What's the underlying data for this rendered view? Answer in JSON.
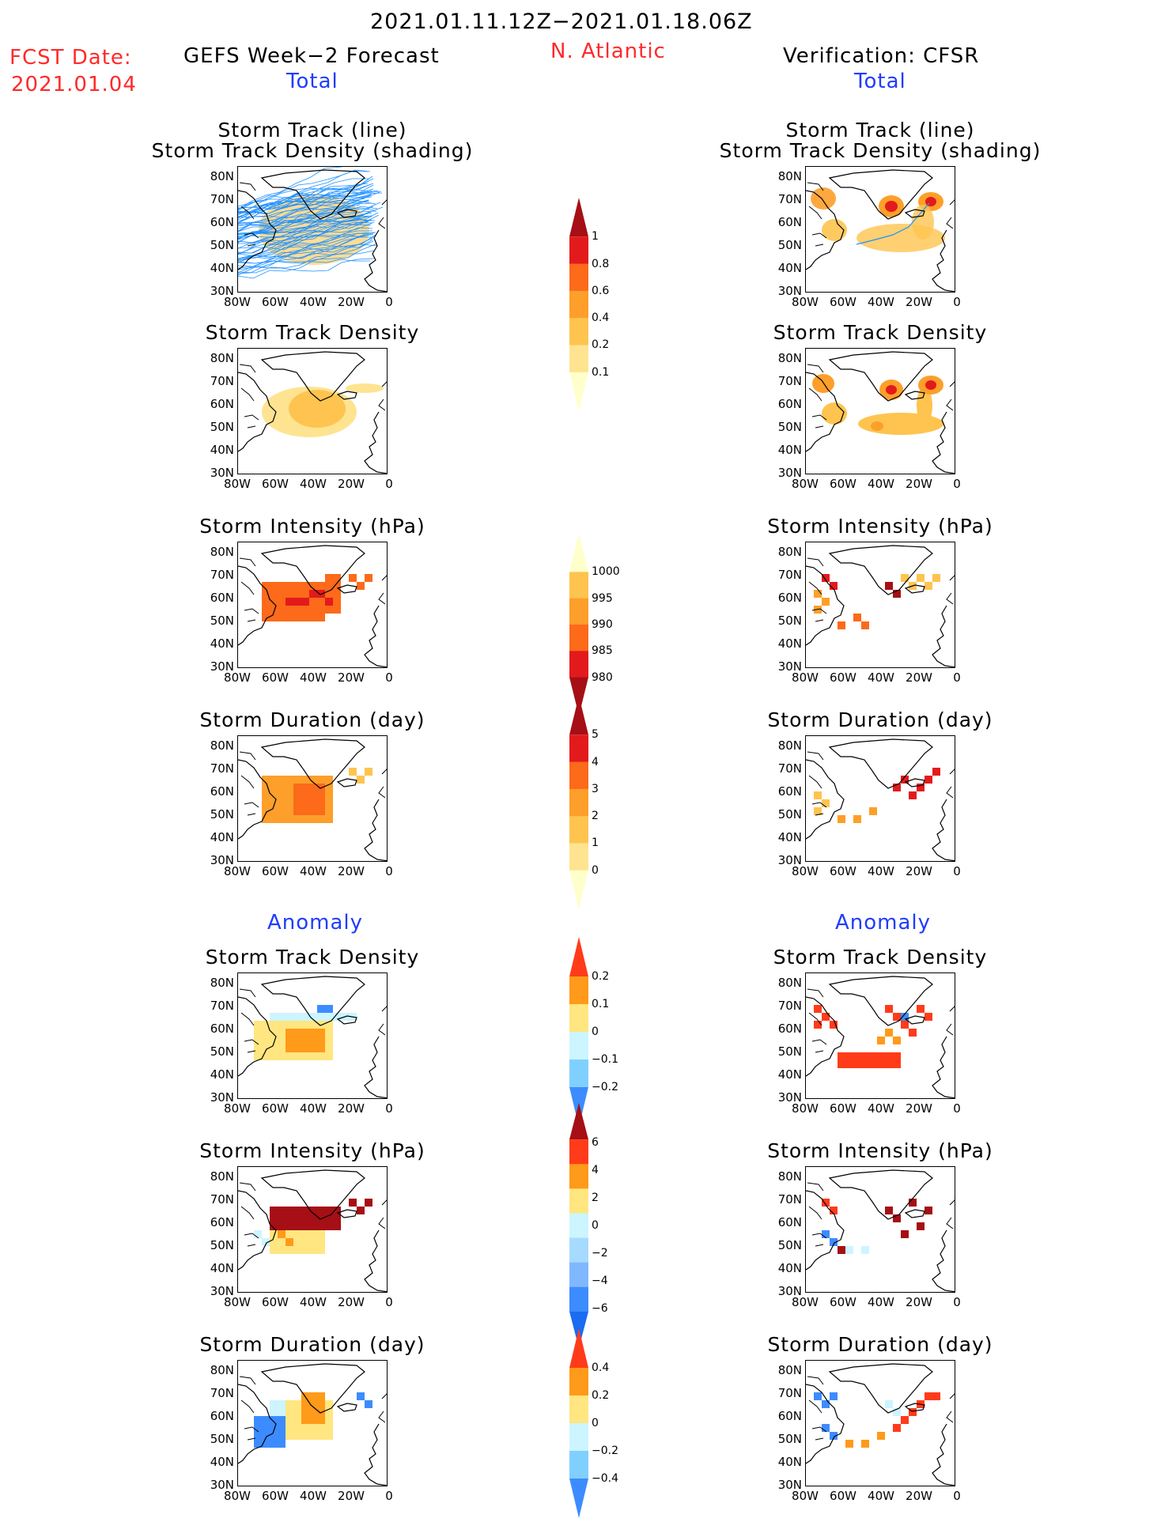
{
  "header": {
    "period": "2021.01.11.12Z−2021.01.18.06Z",
    "region": "N. Atlantic",
    "fcst_label": "FCST Date:",
    "fcst_date": "2021.01.04",
    "left_title": "GEFS Week−2 Forecast",
    "left_total": "Total",
    "right_title": "Verification: CFSR",
    "right_total": "Total"
  },
  "sections": {
    "anomaly_left": "Anomaly",
    "anomaly_right": "Anomaly"
  },
  "panel_titles": {
    "track_line": "Storm Track (line)",
    "track_shade": "Storm Track Density (shading)",
    "density": "Storm Track Density",
    "intensity": "Storm Intensity (hPa)",
    "duration": "Storm Duration (day)"
  },
  "axes": {
    "lat_ticks": [
      "80N",
      "70N",
      "60N",
      "50N",
      "40N",
      "30N"
    ],
    "lon_ticks": [
      "80W",
      "60W",
      "40W",
      "20W",
      "0"
    ]
  },
  "colorbars": [
    {
      "name": "density-total",
      "labels": [
        "1",
        "0.8",
        "0.6",
        "0.4",
        "0.2",
        "0.1"
      ],
      "colors": [
        "#a50f15",
        "#e31a1c",
        "#fc6a1a",
        "#fd9f2a",
        "#fec44f",
        "#fee391",
        "#ffffcc"
      ]
    },
    {
      "name": "intensity-total",
      "labels": [
        "1000",
        "995",
        "990",
        "985",
        "980"
      ],
      "colors": [
        "#ffffcc",
        "#fec44f",
        "#fd9f2a",
        "#fc6a1a",
        "#e31a1c",
        "#a50f15"
      ]
    },
    {
      "name": "duration-total",
      "labels": [
        "5",
        "4",
        "3",
        "2",
        "1",
        "0"
      ],
      "colors": [
        "#a50f15",
        "#e31a1c",
        "#fc6a1a",
        "#fd9f2a",
        "#fec44f",
        "#fee391",
        "#ffffcc"
      ]
    },
    {
      "name": "density-anomaly",
      "labels": [
        "0.2",
        "0.1",
        "0",
        "−0.1",
        "−0.2"
      ],
      "colors": [
        "#ff3b1a",
        "#ff9a1a",
        "#ffe680",
        "#ccf5ff",
        "#80d0ff",
        "#3c8cff"
      ]
    },
    {
      "name": "intensity-anomaly",
      "labels": [
        "6",
        "4",
        "2",
        "0",
        "−2",
        "−4",
        "−6"
      ],
      "colors": [
        "#a50f15",
        "#ff3b1a",
        "#ff9a1a",
        "#ffe680",
        "#ccf5ff",
        "#a6dbff",
        "#80b8ff",
        "#3c8cff",
        "#1a6cf0"
      ]
    },
    {
      "name": "duration-anomaly",
      "labels": [
        "0.4",
        "0.2",
        "0",
        "−0.2",
        "−0.4"
      ],
      "colors": [
        "#ff3b1a",
        "#ff9a1a",
        "#ffe680",
        "#ccf5ff",
        "#80d0ff",
        "#3c8cff"
      ]
    }
  ],
  "colors": {
    "track": "#1e90ff",
    "coast": "#000000",
    "red_text": "#ff2a2a",
    "blue_text": "#1f3cff"
  }
}
